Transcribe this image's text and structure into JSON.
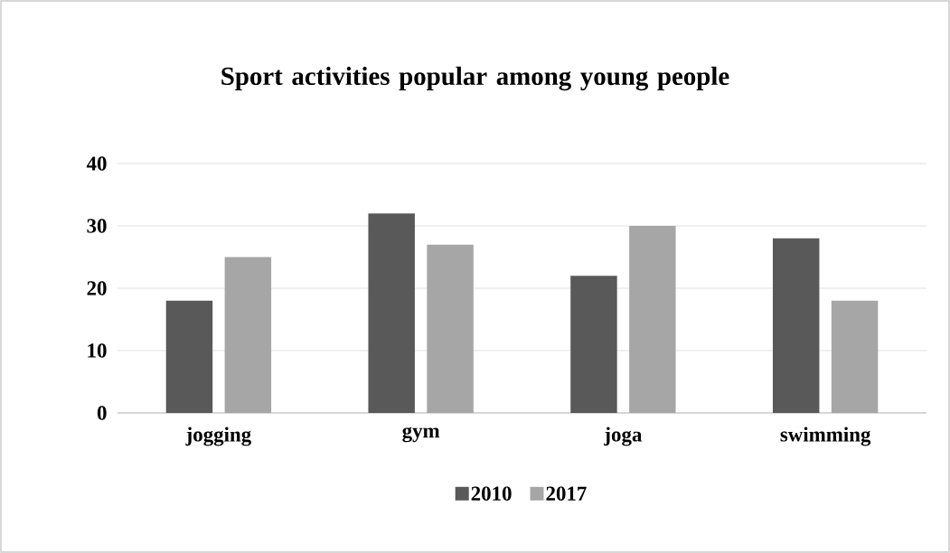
{
  "chart_data": {
    "type": "bar",
    "title": "Sport activities popular among young people",
    "categories": [
      "jogging",
      "gym",
      "joga",
      "swimming"
    ],
    "series": [
      {
        "name": "2010",
        "color": "#595959",
        "values": [
          18,
          32,
          22,
          28
        ]
      },
      {
        "name": "2017",
        "color": "#a6a6a6",
        "values": [
          25,
          27,
          30,
          18
        ]
      }
    ],
    "ylim": [
      0,
      40
    ],
    "yticks": [
      0,
      10,
      20,
      30,
      40
    ],
    "grid": "y",
    "legend": "bottom"
  }
}
